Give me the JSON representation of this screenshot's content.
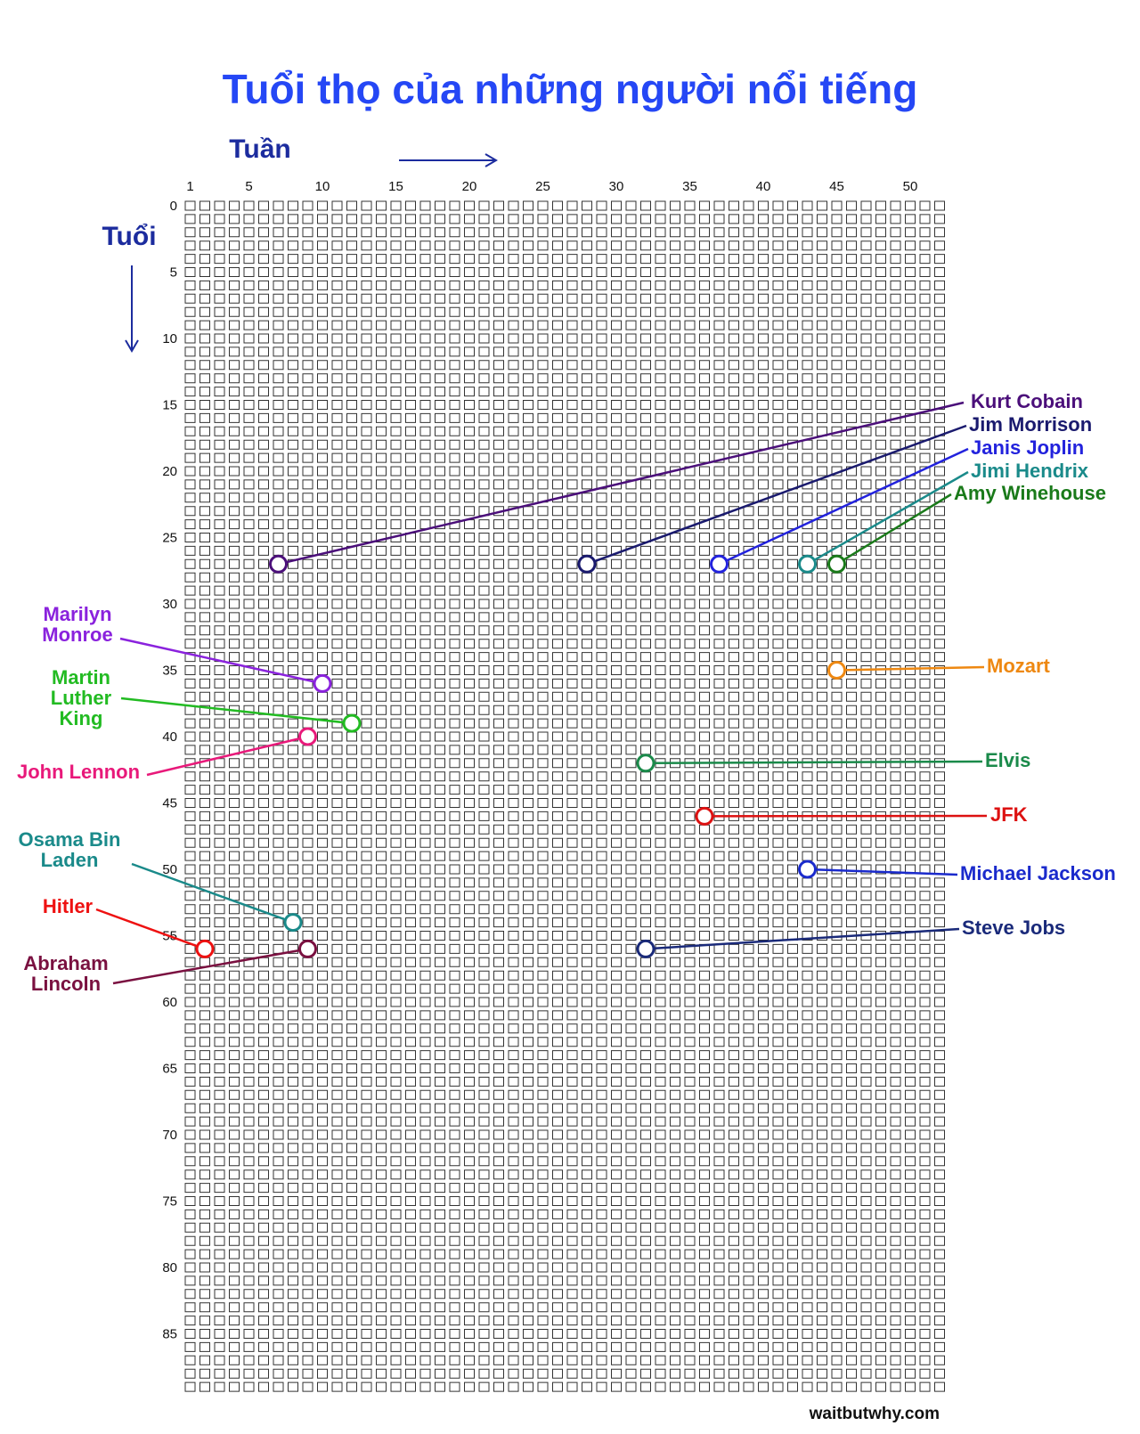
{
  "chart_data": {
    "type": "scatter",
    "title": "Tuổi thọ của những người nổi tiếng",
    "xlabel": "Tuần",
    "ylabel": "Tuổi",
    "x_ticks": [
      "1",
      "5",
      "10",
      "15",
      "20",
      "25",
      "30",
      "35",
      "40",
      "45",
      "50"
    ],
    "y_ticks": [
      "0",
      "5",
      "10",
      "15",
      "20",
      "25",
      "30",
      "35",
      "40",
      "45",
      "50",
      "55",
      "60",
      "65",
      "70",
      "75",
      "80",
      "85"
    ],
    "weeks": 52,
    "years": 90,
    "source": "waitbutwhy.com",
    "points": [
      {
        "label": "Kurt Cobain",
        "week": 7,
        "age": 27,
        "color": "#4b0f7a"
      },
      {
        "label": "Jim Morrison",
        "week": 28,
        "age": 27,
        "color": "#1a1a6e"
      },
      {
        "label": "Janis Joplin",
        "week": 37,
        "age": 27,
        "color": "#2222dd"
      },
      {
        "label": "Jimi Hendrix",
        "week": 43,
        "age": 27,
        "color": "#1a8a8a"
      },
      {
        "label": "Amy Winehouse",
        "week": 45,
        "age": 27,
        "color": "#1a7a1a"
      },
      {
        "label": "Marilyn Monroe",
        "week": 10,
        "age": 36,
        "color": "#8a22dd"
      },
      {
        "label": "Mozart",
        "week": 45,
        "age": 35,
        "color": "#ee8811"
      },
      {
        "label": "Martin Luther King",
        "week": 12,
        "age": 39,
        "color": "#22bb22"
      },
      {
        "label": "John Lennon",
        "week": 9,
        "age": 40,
        "color": "#e8197a"
      },
      {
        "label": "Elvis",
        "week": 32,
        "age": 42,
        "color": "#1a8a4a"
      },
      {
        "label": "JFK",
        "week": 36,
        "age": 46,
        "color": "#dd1111"
      },
      {
        "label": "Michael Jackson",
        "week": 43,
        "age": 50,
        "color": "#1a2acc"
      },
      {
        "label": "Osama Bin Laden",
        "week": 8,
        "age": 54,
        "color": "#1a8a8a"
      },
      {
        "label": "Hitler",
        "week": 2,
        "age": 56,
        "color": "#ee1111"
      },
      {
        "label": "Abraham Lincoln",
        "week": 9,
        "age": 56,
        "color": "#7a1040"
      },
      {
        "label": "Steve Jobs",
        "week": 32,
        "age": 56,
        "color": "#1a2a7a"
      }
    ]
  }
}
